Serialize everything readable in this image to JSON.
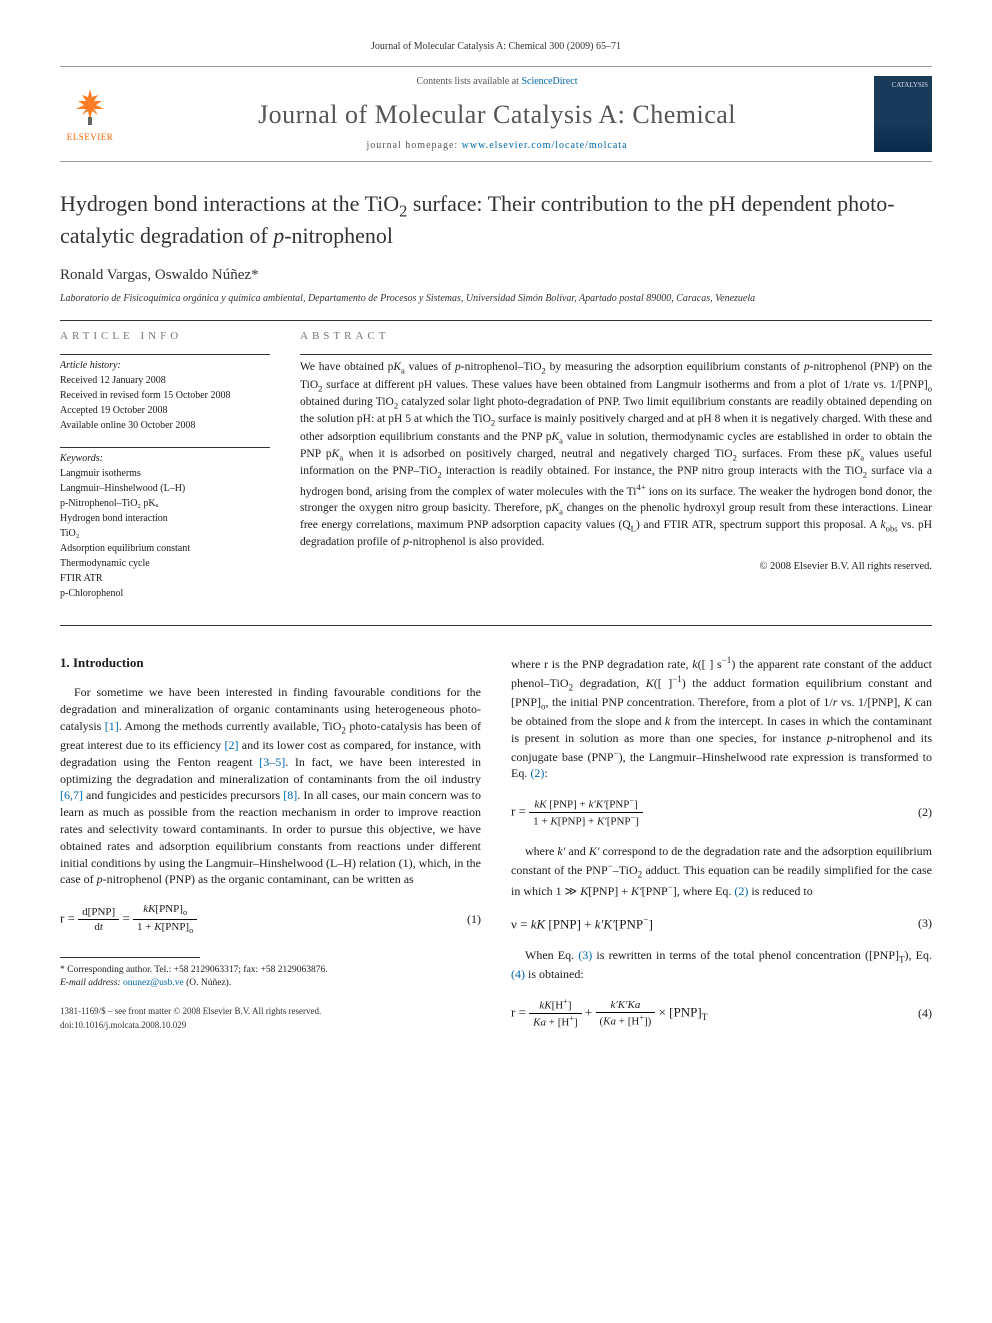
{
  "header": {
    "journal_citation": "Journal of Molecular Catalysis A: Chemical 300 (2009) 65–71",
    "contents_prefix": "Contents lists available at ",
    "contents_link": "ScienceDirect",
    "journal_title": "Journal of Molecular Catalysis A: Chemical",
    "homepage_prefix": "journal homepage: ",
    "homepage_url": "www.elsevier.com/locate/molcata",
    "elsevier_label": "ELSEVIER",
    "cover_text": "CATALYSIS"
  },
  "article": {
    "title_html": "Hydrogen bond interactions at the TiO<sub>2</sub> surface: Their contribution to the pH dependent photo-catalytic degradation of <em>p</em>-nitrophenol",
    "authors": "Ronald Vargas, Oswaldo Núñez*",
    "affiliation": "Laboratorio de Fisicoquímica orgánica y química ambiental, Departamento de Procesos y Sistemas, Universidad Simón Bolívar, Apartado postal 89000, Caracas, Venezuela"
  },
  "info": {
    "label": "ARTICLE INFO",
    "history_label": "Article history:",
    "received": "Received 12 January 2008",
    "revised": "Received in revised form 15 October 2008",
    "accepted": "Accepted 19 October 2008",
    "online": "Available online 30 October 2008",
    "keywords_label": "Keywords:",
    "keywords": [
      "Langmuir isotherms",
      "Langmuir–Hinshelwood (L–H)",
      "p-Nitrophenol–TiO₂ pKₐ",
      "Hydrogen bond interaction",
      "TiO₂",
      "Adsorption equilibrium constant",
      "Thermodynamic cycle",
      "FTIR ATR",
      "p-Chlorophenol"
    ]
  },
  "abstract": {
    "label": "ABSTRACT",
    "text_html": "We have obtained p<em>K</em><sub>a</sub> values of <em>p</em>-nitrophenol–TiO<sub>2</sub> by measuring the adsorption equilibrium constants of <em>p</em>-nitrophenol (PNP) on the TiO<sub>2</sub> surface at different pH values. These values have been obtained from Langmuir isotherms and from a plot of 1/rate vs. 1/[PNP]<sub>o</sub> obtained during TiO<sub>2</sub> catalyzed solar light photo-degradation of PNP. Two limit equilibrium constants are readily obtained depending on the solution pH: at pH 5 at which the TiO<sub>2</sub> surface is mainly positively charged and at pH 8 when it is negatively charged. With these and other adsorption equilibrium constants and the PNP p<em>K</em><sub>a</sub> value in solution, thermodynamic cycles are established in order to obtain the PNP p<em>K</em><sub>a</sub> when it is adsorbed on positively charged, neutral and negatively charged TiO<sub>2</sub> surfaces. From these p<em>K</em><sub>a</sub> values useful information on the PNP–TiO<sub>2</sub> interaction is readily obtained. For instance, the PNP nitro group interacts with the TiO<sub>2</sub> surface via a hydrogen bond, arising from the complex of water molecules with the Ti<sup>4+</sup> ions on its surface. The weaker the hydrogen bond donor, the stronger the oxygen nitro group basicity. Therefore, p<em>K</em><sub>a</sub> changes on the phenolic hydroxyl group result from these interactions. Linear free energy correlations, maximum PNP adsorption capacity values (Q<sub>L</sub>) and FTIR ATR, spectrum support this proposal. A <em>k</em><sub>obs</sub> vs. pH degradation profile of <em>p</em>-nitrophenol is also provided.",
    "copyright": "© 2008 Elsevier B.V. All rights reserved."
  },
  "body": {
    "heading": "1. Introduction",
    "left_para_html": "For sometime we have been interested in finding favourable conditions for the degradation and mineralization of organic contaminants using heterogeneous photo-catalysis <span class=\"ref-link\">[1]</span>. Among the methods currently available, TiO<sub>2</sub> photo-catalysis has been of great interest due to its efficiency <span class=\"ref-link\">[2]</span> and its lower cost as compared, for instance, with degradation using the Fenton reagent <span class=\"ref-link\">[3–5]</span>. In fact, we have been interested in optimizing the degradation and mineralization of contaminants from the oil industry <span class=\"ref-link\">[6,7]</span> and fungicides and pesticides precursors <span class=\"ref-link\">[8]</span>. In all cases, our main concern was to learn as much as possible from the reaction mechanism in order to improve reaction rates and selectivity toward contaminants. In order to pursue this objective, we have obtained rates and adsorption equilibrium constants from reactions under different initial conditions by using the Langmuir–Hinshelwood (L–H) relation (1), which, in the case of <em>p</em>-nitrophenol (PNP) as the organic contaminant, can be written as",
    "right_para1_html": "where r is the PNP degradation rate, <em>k</em>([ ] s<sup>−1</sup>) the apparent rate constant of the adduct phenol–TiO<sub>2</sub> degradation, <em>K</em>([ ]<sup>−1</sup>) the adduct formation equilibrium constant and [PNP]<sub>o</sub>, the initial PNP concentration. Therefore, from a plot of 1/<em>r</em> vs. 1/[PNP], <em>K</em> can be obtained from the slope and <em>k</em> from the intercept. In cases in which the contaminant is present in solution as more than one species, for instance <em>p</em>-nitrophenol and its conjugate base (PNP<sup>−</sup>), the Langmuir–Hinshelwood rate expression is transformed to Eq. <span class=\"ref-link\">(2)</span>:",
    "right_para2_html": "where <em>k′</em> and <em>K′</em> correspond to de the degradation rate and the adsorption equilibrium constant of the PNP<sup>−</sup>–TiO<sub>2</sub> adduct. This equation can be readily simplified for the case in which 1 ≫ <em>K</em>[PNP] + <em>K′</em>[PNP<sup>−</sup>], where Eq. <span class=\"ref-link\">(2)</span> is reduced to",
    "right_para3_html": "When Eq. <span class=\"ref-link\">(3)</span> is rewritten in terms of the total phenol concentration ([PNP]<sub>T</sub>), Eq. <span class=\"ref-link\">(4)</span> is obtained:"
  },
  "equations": {
    "eq1_num": "(1)",
    "eq2_num": "(2)",
    "eq3_num": "(3)",
    "eq3_body_html": "ν = <em>kK</em> [PNP] + <em>k′K′</em>[PNP<sup>−</sup>]",
    "eq4_num": "(4)"
  },
  "footer": {
    "corr_html": "* Corresponding author. Tel.: +58 2129063317; fax: +58 2129063876.",
    "email_label": "E-mail address: ",
    "email": "onunez@usb.ve",
    "email_suffix": " (O. Núñez).",
    "issn_line": "1381-1169/$ – see front matter © 2008 Elsevier B.V. All rights reserved.",
    "doi_line": "doi:10.1016/j.molcata.2008.10.029"
  },
  "colors": {
    "link": "#0066aa",
    "elsevier_orange": "#ff6600",
    "rule": "#333333"
  }
}
